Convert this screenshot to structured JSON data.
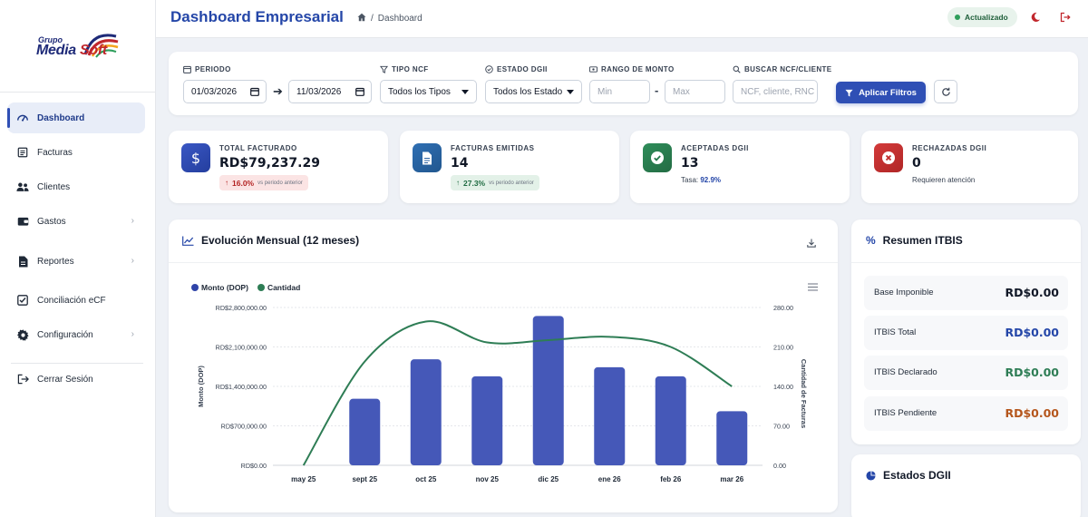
{
  "brand": {
    "logo_small": "Grupo",
    "logo_main_a": "Media",
    "logo_main_b": "Soft"
  },
  "header": {
    "title": "Dashboard Empresarial",
    "breadcrumb_sep": "/",
    "breadcrumb_current": "Dashboard",
    "status_label": "Actualizado"
  },
  "sidebar": {
    "items": [
      {
        "label": "Dashboard",
        "icon": "gauge-icon",
        "active": true
      },
      {
        "label": "Facturas",
        "icon": "invoice-icon"
      },
      {
        "label": "Clientes",
        "icon": "users-icon"
      },
      {
        "label": "Gastos",
        "icon": "wallet-icon",
        "chevron": true
      },
      {
        "label": "Reportes",
        "icon": "report-icon",
        "chevron": true
      },
      {
        "label": "Conciliación eCF",
        "icon": "check-square-icon"
      },
      {
        "label": "Configuración",
        "icon": "gear-icon",
        "chevron": true
      },
      {
        "label": "Cerrar Sesión",
        "icon": "logout-icon"
      }
    ]
  },
  "filters": {
    "periodo_label": "PERIODO",
    "fecha_desde": "01/03/2026",
    "fecha_hasta": "11/03/2026",
    "tipo_ncf_label": "TIPO NCF",
    "tipo_ncf_value": "Todos los Tipos",
    "estado_label": "ESTADO DGII",
    "estado_value": "Todos los Estados",
    "monto_label": "RANGO DE MONTO",
    "monto_min_placeholder": "Min",
    "monto_max_placeholder": "Max",
    "monto_sep": "-",
    "buscar_label": "BUSCAR NCF/CLIENTE",
    "buscar_placeholder": "NCF, cliente, RNC",
    "apply_label": "Aplicar Filtros"
  },
  "kpis": {
    "facturado": {
      "label": "TOTAL FACTURADO",
      "value": "RD$79,237.29",
      "change": "16.0%",
      "vs": "vs periodo anterior",
      "icon": "dollar-icon"
    },
    "emitidas": {
      "label": "FACTURAS EMITIDAS",
      "value": "14",
      "change": "27.3%",
      "vs": "vs periodo anterior",
      "icon": "document-icon"
    },
    "aceptadas": {
      "label": "ACEPTADAS DGII",
      "value": "13",
      "rate_label": "Tasa:",
      "rate_value": "92.9%",
      "icon": "check-circle-icon"
    },
    "rechazadas": {
      "label": "RECHAZADAS DGII",
      "value": "0",
      "sub": "Requieren atención",
      "icon": "x-circle-icon"
    }
  },
  "colors": {
    "primary": "#2f4fb5",
    "bar": "#4558b8",
    "line": "#2e7d55",
    "green": "#2e7d55",
    "red": "#c1272d",
    "orange": "#b5561c"
  },
  "chart_card": {
    "title": "Evolución Mensual (12 meses)"
  },
  "chart_data": {
    "type": "bar",
    "categories": [
      "may 25",
      "sept 25",
      "oct 25",
      "nov 25",
      "dic 25",
      "ene 26",
      "feb 26",
      "mar 26"
    ],
    "series": [
      {
        "name": "Monto (DOP)",
        "type": "bar",
        "axis": "left",
        "values": [
          0,
          1180000,
          1880000,
          1580000,
          2650000,
          1740000,
          1580000,
          960000
        ]
      },
      {
        "name": "Cantidad",
        "type": "line",
        "axis": "right",
        "smooth": true,
        "values": [
          0,
          184,
          255,
          218,
          222,
          228,
          210,
          140
        ]
      }
    ],
    "ylabel": "Monto (DOP)",
    "y2label": "Cantidad de Facturas",
    "ylim": [
      0,
      2800000
    ],
    "y2lim": [
      0,
      280
    ],
    "yticks": [
      "RD$0.00",
      "RD$700,000.00",
      "RD$1,400,000.00",
      "RD$2,100,000.00",
      "RD$2,800,000.00"
    ],
    "y2ticks": [
      "0.00",
      "70.00",
      "140.00",
      "210.00",
      "280.00"
    ],
    "legend": "top-left",
    "grid": true
  },
  "itbis": {
    "title": "Resumen ITBIS",
    "rows": [
      {
        "label": "Base Imponible",
        "value": "RD$0.00",
        "color": "#111827"
      },
      {
        "label": "ITBIS Total",
        "value": "RD$0.00",
        "color": "#2446a8"
      },
      {
        "label": "ITBIS Declarado",
        "value": "RD$0.00",
        "color": "#2e7d55"
      },
      {
        "label": "ITBIS Pendiente",
        "value": "RD$0.00",
        "color": "#b5561c"
      }
    ]
  },
  "estados": {
    "title": "Estados DGII"
  }
}
